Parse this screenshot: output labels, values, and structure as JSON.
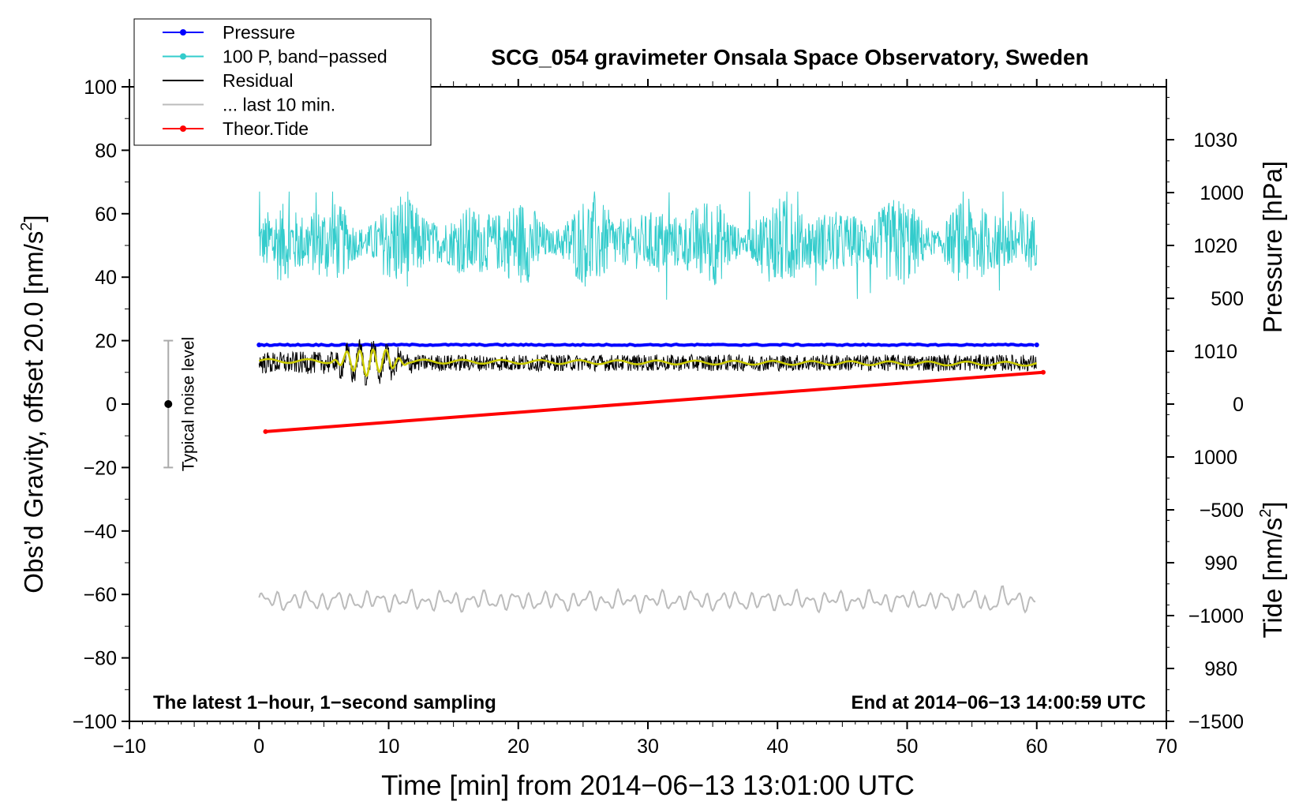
{
  "chart_data": {
    "type": "line",
    "title": "SCG_054 gravimeter Onsala Space Observatory, Sweden",
    "xlabel": "Time [min] from 2014−06−13 13:01:00 UTC",
    "ylabel": "Obs’d Gravity, offset 20.0 [nm/s²]",
    "ylabel_main": "Obs’d Gravity, offset 20.0 [nm/s",
    "ylabel_sup": "2",
    "ylabel_close": "]",
    "y2label": "Pressure [hPa]",
    "y3label_main": "Tide [nm/s",
    "y3label_sup": "2",
    "y3label_close": "]",
    "xlim": [
      -10,
      70
    ],
    "ylim": [
      -100,
      100
    ],
    "pressure_lim": [
      975,
      1035
    ],
    "tide_lim": [
      -1500,
      1500
    ],
    "x_ticks": [
      "−10",
      "0",
      "10",
      "20",
      "30",
      "40",
      "50",
      "60",
      "70"
    ],
    "x_tick_values": [
      -10,
      0,
      10,
      20,
      30,
      40,
      50,
      60,
      70
    ],
    "y_ticks": [
      "100",
      "80",
      "60",
      "40",
      "20",
      "0",
      "−20",
      "−40",
      "−60",
      "−80",
      "−100"
    ],
    "y_tick_values": [
      100,
      80,
      60,
      40,
      20,
      0,
      -20,
      -40,
      -60,
      -80,
      -100
    ],
    "pressure_ticks": [
      "1030",
      "1020",
      "1010",
      "1000",
      "990",
      "980"
    ],
    "pressure_tick_values": [
      1030,
      1020,
      1010,
      1000,
      990,
      980
    ],
    "tide_ticks": [
      "1000",
      "500",
      "0",
      "−500",
      "−1000",
      "−1500"
    ],
    "tide_tick_values": [
      1000,
      500,
      0,
      -500,
      -1000,
      -1500
    ],
    "grid": false,
    "legend_position": "top-left",
    "legend": [
      {
        "label": "Pressure",
        "color": "#0000ff",
        "marker": true
      },
      {
        "label": "100 P, band−passed",
        "color": "#33cccc",
        "marker": true
      },
      {
        "label": "Residual",
        "color": "#000000",
        "marker": false
      },
      {
        "label": "... last 10 min.",
        "color": "#bbbbbb",
        "marker": false
      },
      {
        "label": "Theor.Tide",
        "color": "#ff0000",
        "marker": true
      }
    ],
    "series": [
      {
        "name": "Pressure",
        "axis": "pressure",
        "color": "#0000ff",
        "x": [
          0,
          60
        ],
        "y": [
          1010.6,
          1010.6
        ]
      },
      {
        "name": "100 P, band−passed",
        "axis": "gravity",
        "color": "#33cccc",
        "x_range": [
          0,
          60
        ],
        "center": 51,
        "approx_min": 31,
        "approx_max": 67
      },
      {
        "name": "Residual",
        "axis": "gravity",
        "color": "#000000",
        "x_range": [
          0,
          60
        ],
        "center": 13,
        "approx_min": 6,
        "approx_max": 21
      },
      {
        "name": "smoothed residual",
        "axis": "gravity",
        "color": "#cccc00",
        "x_range": [
          0,
          60
        ],
        "center": 13
      },
      {
        "name": "... last 10 min.",
        "axis": "gravity",
        "color": "#bbbbbb",
        "x_range": [
          0,
          60
        ],
        "center": -62,
        "approx_min": -68,
        "approx_max": -57
      },
      {
        "name": "Theor.Tide",
        "axis": "tide",
        "color": "#ff0000",
        "x": [
          0.5,
          60.5
        ],
        "y": [
          -130,
          150
        ]
      }
    ],
    "noise_bar": {
      "label": "Typical noise level",
      "x": -7,
      "center": 0,
      "low": -20,
      "high": 20
    },
    "annotation_left": "The latest 1−hour, 1−second sampling",
    "annotation_right": "End at 2014−06−13 14:00:59 UTC"
  }
}
